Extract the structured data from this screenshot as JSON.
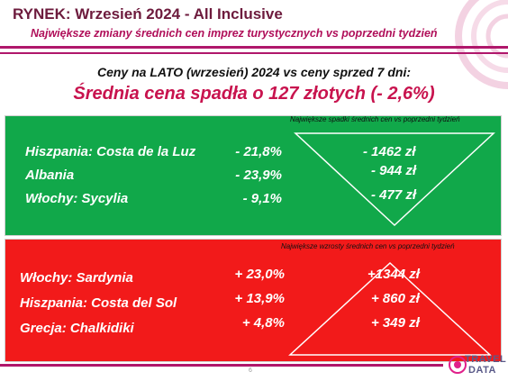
{
  "header": {
    "title": "RYNEK: Wrzesień 2024 - All Inclusive",
    "subtitle": "Największe zmiany średnich cen imprez turystycznych vs poprzedni tydzień"
  },
  "summary": {
    "intro": "Ceny na LATO (wrzesień) 2024 vs ceny sprzed 7 dni:",
    "headline": "Średnia cena spadła o 127 złotych (- 2,6%)"
  },
  "decreases": {
    "caption": "Największe spadki średnich cen vs poprzedni tydzień",
    "color": "#11a84a",
    "rows": [
      {
        "label": "Hiszpania: Costa de la Luz",
        "pct": "- 21,8%",
        "amount": "- 1462 zł"
      },
      {
        "label": "Albania",
        "pct": "- 23,9%",
        "amount": "- 944 zł"
      },
      {
        "label": "Włochy: Sycylia",
        "pct": "- 9,1%",
        "amount": "- 477 zł"
      }
    ]
  },
  "increases": {
    "caption": "Największe wzrosty średnich cen vs poprzedni tydzień",
    "color": "#f21a1a",
    "rows": [
      {
        "label": "Włochy: Sardynia",
        "pct": "+ 23,0%",
        "amount": "+1344 zł"
      },
      {
        "label": "Hiszpania: Costa del Sol",
        "pct": "+ 13,9%",
        "amount": "+ 860 zł"
      },
      {
        "label": "Grecja: Chalkidiki",
        "pct": "+ 4,8%",
        "amount": "+ 349 zł"
      }
    ]
  },
  "footer": {
    "page_number": "6",
    "logo_line1": "TRAVEL",
    "logo_line2": "DATA"
  }
}
